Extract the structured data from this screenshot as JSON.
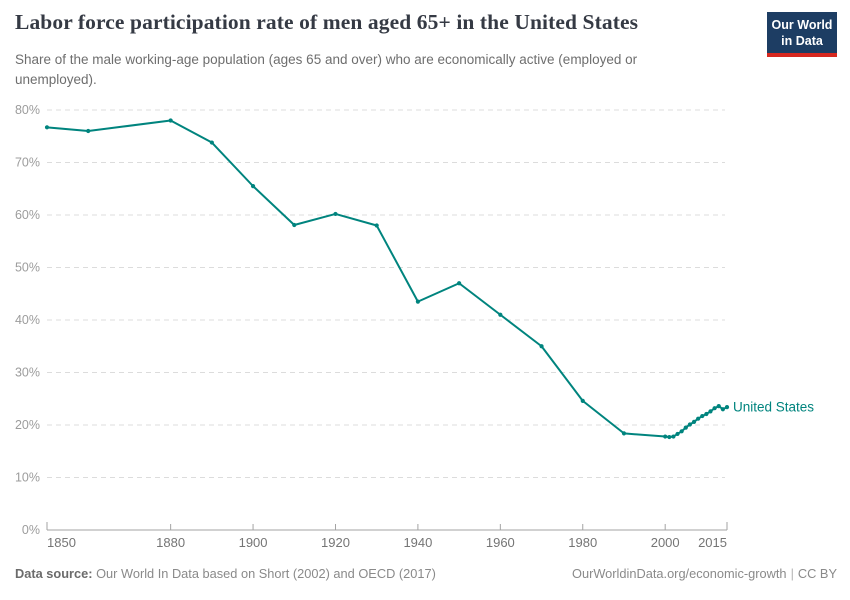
{
  "header": {
    "title": "Labor force participation rate of men aged 65+ in the United States",
    "subtitle": "Share of the male working-age population (ages 65 and over) who are economically active (employed or unemployed).",
    "logo": {
      "line1": "Our World",
      "line2": "in Data"
    }
  },
  "chart_data": {
    "type": "line",
    "title": "Labor force participation rate of men aged 65+ in the United States",
    "series": [
      {
        "name": "United States",
        "x": [
          1850,
          1860,
          1880,
          1890,
          1900,
          1910,
          1920,
          1930,
          1940,
          1950,
          1960,
          1970,
          1980,
          1990,
          2000,
          2001,
          2002,
          2003,
          2004,
          2005,
          2006,
          2007,
          2008,
          2009,
          2010,
          2011,
          2012,
          2013,
          2014,
          2015
        ],
        "values": [
          76.7,
          76.0,
          78.0,
          73.8,
          65.5,
          58.1,
          60.2,
          58.0,
          43.5,
          47.0,
          41.0,
          35.0,
          24.6,
          18.4,
          17.8,
          17.7,
          17.8,
          18.3,
          18.8,
          19.5,
          20.1,
          20.6,
          21.2,
          21.7,
          22.1,
          22.6,
          23.2,
          23.6,
          23.0,
          23.4
        ]
      }
    ],
    "x_ticks": [
      1850,
      1880,
      1900,
      1920,
      1940,
      1960,
      1980,
      2000,
      2015
    ],
    "x_tick_labels": [
      "1850",
      "1880",
      "1900",
      "1920",
      "1940",
      "1960",
      "1980",
      "2000",
      "2015"
    ],
    "y_ticks": [
      0,
      10,
      20,
      30,
      40,
      50,
      60,
      70,
      80
    ],
    "y_tick_labels": [
      "0%",
      "10%",
      "20%",
      "30%",
      "40%",
      "50%",
      "60%",
      "70%",
      "80%"
    ],
    "xlim": [
      1850,
      2015
    ],
    "ylim": [
      0,
      80
    ],
    "grid": "horizontal-dashed",
    "legend_position": "end-of-line",
    "line_color": "#00847e"
  },
  "footer": {
    "data_source_label": "Data source:",
    "data_source_text": " Our World In Data based on Short (2002) and OECD (2017)",
    "url": "OurWorldinData.org/economic-growth",
    "separator": "|",
    "license": "CC BY"
  },
  "colors": {
    "line": "#00847e",
    "logo_navy": "#1d3d63",
    "logo_red": "#d7281f",
    "grid": "#dcdcdc",
    "axis": "#a3a3a3",
    "y_tick_text": "#9c9c9c",
    "x_tick_text": "#757575"
  }
}
